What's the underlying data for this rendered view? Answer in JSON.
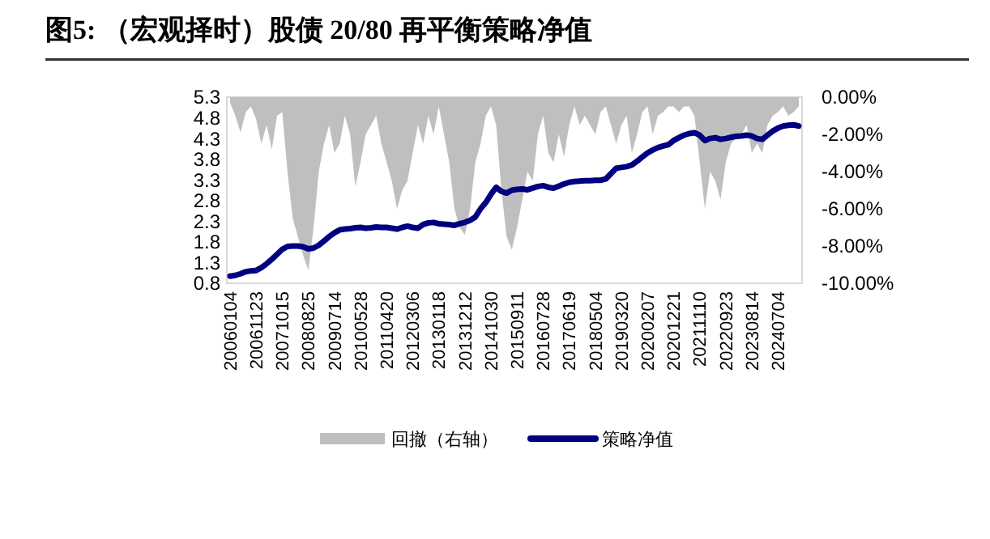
{
  "chart_data": {
    "type": "line",
    "title": "图5:  （宏观择时）股债 20/80 再平衡策略净值",
    "categories": [
      "20060104",
      null,
      null,
      null,
      null,
      "20061123",
      null,
      null,
      null,
      null,
      "20071015",
      null,
      null,
      null,
      null,
      "20080825",
      null,
      null,
      null,
      null,
      "20090714",
      null,
      null,
      null,
      null,
      "20100528",
      null,
      null,
      null,
      null,
      "20110420",
      null,
      null,
      null,
      null,
      "20120306",
      null,
      null,
      null,
      null,
      "20130118",
      null,
      null,
      null,
      null,
      "20131212",
      null,
      null,
      null,
      null,
      "20141030",
      null,
      null,
      null,
      null,
      "20150911",
      null,
      null,
      null,
      null,
      "20160728",
      null,
      null,
      null,
      null,
      "20170619",
      null,
      null,
      null,
      null,
      "20180504",
      null,
      null,
      null,
      null,
      "20190320",
      null,
      null,
      null,
      null,
      "20200207",
      null,
      null,
      null,
      null,
      "20201221",
      null,
      null,
      null,
      null,
      "20211110",
      null,
      null,
      null,
      null,
      "20220923",
      null,
      null,
      null,
      null,
      "20230814",
      null,
      null,
      null,
      null,
      "20240704",
      null,
      null,
      null,
      null
    ],
    "series": [
      {
        "name": "回撤（右轴）",
        "type": "area",
        "axis": "y2",
        "color": "#bfbfbf",
        "values": [
          -0.3,
          -1.0,
          -1.9,
          -0.8,
          -0.5,
          -1.2,
          -2.5,
          -1.5,
          -2.8,
          -1.0,
          -0.8,
          -4.0,
          -6.5,
          -7.5,
          -8.5,
          -9.3,
          -7.0,
          -4.0,
          -2.5,
          -1.5,
          -3.0,
          -2.5,
          -1.0,
          -2.0,
          -4.8,
          -3.5,
          -2.0,
          -1.5,
          -1.0,
          -2.5,
          -3.5,
          -4.5,
          -6.0,
          -5.0,
          -4.5,
          -3.0,
          -1.5,
          -2.5,
          -1.0,
          -2.0,
          -0.5,
          -2.0,
          -3.5,
          -6.0,
          -7.0,
          -7.4,
          -6.0,
          -3.5,
          -2.5,
          -1.0,
          -0.5,
          -1.5,
          -5.0,
          -7.5,
          -8.2,
          -7.0,
          -5.5,
          -4.0,
          -4.5,
          -2.0,
          -1.0,
          -3.0,
          -3.5,
          -2.0,
          -3.2,
          -1.5,
          -0.5,
          -1.5,
          -1.0,
          -1.5,
          -2.0,
          -0.8,
          -0.5,
          -1.5,
          -2.5,
          -1.5,
          -1.0,
          -3.0,
          -2.0,
          -0.8,
          -0.5,
          -2.0,
          -1.0,
          -0.8,
          -0.5,
          -0.5,
          -0.8,
          -0.5,
          -0.5,
          -1.0,
          -3.5,
          -6.0,
          -4.0,
          -4.5,
          -5.5,
          -3.5,
          -2.5,
          -2.2,
          -2.0,
          -1.5,
          -3.0,
          -2.5,
          -3.0,
          -1.5,
          -1.0,
          -0.8,
          -0.5,
          -1.0,
          -0.8,
          -0.5
        ]
      },
      {
        "name": "策略净值",
        "color": "#000080",
        "values": [
          0.97,
          0.99,
          1.03,
          1.08,
          1.1,
          1.11,
          1.18,
          1.27,
          1.38,
          1.5,
          1.62,
          1.69,
          1.7,
          1.7,
          1.68,
          1.63,
          1.65,
          1.72,
          1.82,
          1.93,
          2.02,
          2.09,
          2.11,
          2.12,
          2.14,
          2.15,
          2.13,
          2.14,
          2.16,
          2.15,
          2.15,
          2.13,
          2.11,
          2.15,
          2.18,
          2.15,
          2.13,
          2.22,
          2.26,
          2.27,
          2.24,
          2.23,
          2.22,
          2.2,
          2.24,
          2.27,
          2.32,
          2.4,
          2.6,
          2.75,
          2.95,
          3.12,
          3.02,
          2.98,
          3.05,
          3.07,
          3.08,
          3.06,
          3.1,
          3.14,
          3.16,
          3.12,
          3.1,
          3.15,
          3.2,
          3.24,
          3.26,
          3.27,
          3.28,
          3.28,
          3.29,
          3.29,
          3.32,
          3.45,
          3.58,
          3.6,
          3.62,
          3.66,
          3.75,
          3.85,
          3.95,
          4.02,
          4.08,
          4.12,
          4.15,
          4.25,
          4.32,
          4.38,
          4.42,
          4.44,
          4.38,
          4.25,
          4.3,
          4.32,
          4.28,
          4.3,
          4.33,
          4.35,
          4.36,
          4.38,
          4.36,
          4.3,
          4.28,
          4.38,
          4.48,
          4.55,
          4.6,
          4.62,
          4.63,
          4.6
        ]
      }
    ],
    "ylim": [
      0.8,
      5.3
    ],
    "yticks": [
      0.8,
      1.3,
      1.8,
      2.3,
      2.8,
      3.3,
      3.8,
      4.3,
      4.8,
      5.3
    ],
    "y2lim": [
      -10,
      0
    ],
    "y2ticks": [
      {
        "value": 0,
        "label": "0.00%"
      },
      {
        "value": -2,
        "label": "-2.00%"
      },
      {
        "value": -4,
        "label": "-4.00%"
      },
      {
        "value": -6,
        "label": "-6.00%"
      },
      {
        "value": -8,
        "label": "-8.00%"
      },
      {
        "value": -10,
        "label": "-10.00%"
      }
    ],
    "grid": false,
    "legend": "bottom"
  }
}
